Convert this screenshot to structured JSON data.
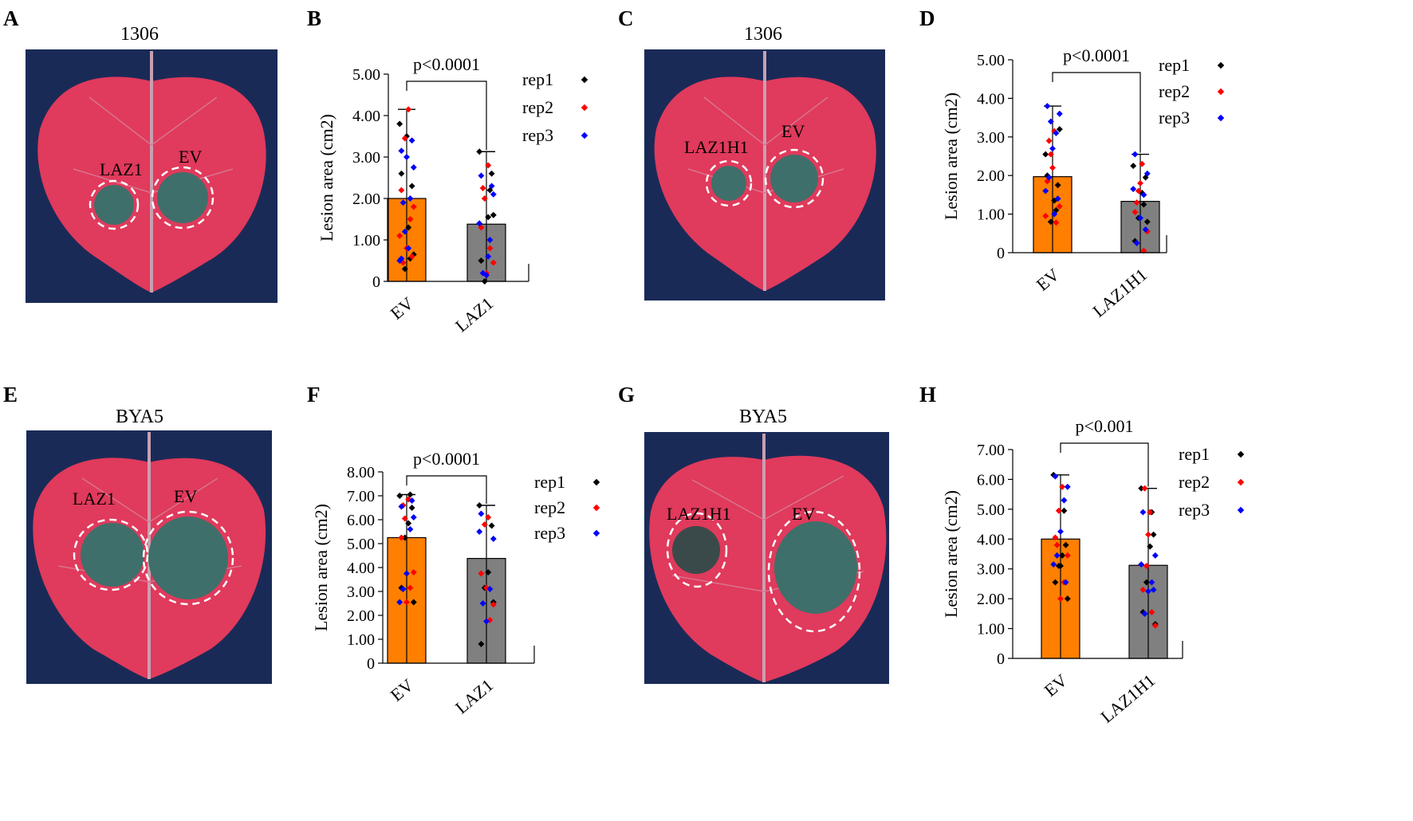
{
  "colors": {
    "ev_bar": "#FF7F00",
    "laz_bar": "#808080",
    "rep1": "#000000",
    "rep2": "#FF0000",
    "rep3": "#0000FF",
    "leaf": "#e03a5c",
    "background_photo": "#1a2a57",
    "lesion": "#3f6f6a"
  },
  "panels": {
    "A": {
      "letter": "A",
      "title": "1306",
      "labels": [
        "LAZ1",
        "EV"
      ]
    },
    "B": {
      "letter": "B"
    },
    "C": {
      "letter": "C",
      "title": "1306",
      "labels": [
        "LAZ1H1",
        "EV"
      ]
    },
    "D": {
      "letter": "D"
    },
    "E": {
      "letter": "E",
      "title": "BYA5",
      "labels": [
        "LAZ1",
        "EV"
      ]
    },
    "F": {
      "letter": "F"
    },
    "G": {
      "letter": "G",
      "title": "BYA5",
      "labels": [
        "LAZ1H1",
        "EV"
      ]
    },
    "H": {
      "letter": "H"
    }
  },
  "chart_data": [
    {
      "panel": "B",
      "type": "bar",
      "categories": [
        "EV",
        "LAZ1"
      ],
      "values": [
        2.0,
        1.38
      ],
      "error_upper": [
        4.15,
        3.13
      ],
      "ylabel": "Lesion area (cm2)",
      "yticks": [
        "0",
        "1.00",
        "2.00",
        "3.00",
        "4.00",
        "5.00"
      ],
      "ylim": [
        0,
        5
      ],
      "pvalue": "p<0.0001",
      "legend": [
        "rep1",
        "rep2",
        "rep3"
      ],
      "points": {
        "EV": {
          "rep1": [
            3.8,
            2.3,
            1.3,
            0.3,
            2.6,
            0.65,
            0.55,
            3.5
          ],
          "rep2": [
            4.15,
            3.45,
            2.2,
            1.8,
            1.5,
            0.8,
            0.45,
            1.1,
            0.6
          ],
          "rep3": [
            3.15,
            2.75,
            2.0,
            3.0,
            1.9,
            0.5,
            3.4,
            0.8,
            1.2,
            0.55
          ]
        },
        "LAZ1": {
          "rep1": [
            3.13,
            2.6,
            1.55,
            0.0,
            0.5,
            1.6,
            2.2
          ],
          "rep2": [
            2.8,
            2.0,
            1.3,
            0.45,
            0.8,
            0.2,
            2.25
          ],
          "rep3": [
            2.55,
            2.1,
            1.0,
            0.15,
            0.2,
            1.4,
            2.3,
            0.6
          ]
        }
      }
    },
    {
      "panel": "D",
      "type": "bar",
      "categories": [
        "EV",
        "LAZ1H1"
      ],
      "values": [
        1.97,
        1.33
      ],
      "error_upper": [
        3.8,
        2.55
      ],
      "ylabel": "Lesion area (cm2)",
      "yticks": [
        "0",
        "1.00",
        "2.00",
        "3.00",
        "4.00",
        "5.00"
      ],
      "ylim": [
        0,
        5
      ],
      "pvalue": "p<0.0001",
      "legend": [
        "rep1",
        "rep2",
        "rep3"
      ],
      "points": {
        "EV": {
          "rep1": [
            2.55,
            1.75,
            1.35,
            0.8,
            2.0,
            3.2,
            1.1
          ],
          "rep2": [
            3.15,
            2.55,
            1.85,
            1.2,
            0.78,
            2.2,
            2.9,
            0.95
          ],
          "rep3": [
            3.8,
            3.6,
            3.1,
            2.7,
            1.95,
            1.6,
            1.4,
            1.0,
            3.4
          ]
        },
        "LAZ1H1": {
          "rep1": [
            2.25,
            1.95,
            1.55,
            0.9,
            0.3,
            0.8,
            1.25
          ],
          "rep2": [
            2.3,
            1.6,
            1.05,
            0.55,
            0.05,
            1.8,
            1.3
          ],
          "rep3": [
            2.55,
            2.05,
            1.5,
            0.9,
            0.25,
            1.65,
            0.6
          ]
        }
      }
    },
    {
      "panel": "F",
      "type": "bar",
      "categories": [
        "EV",
        "LAZ1"
      ],
      "values": [
        5.25,
        4.38
      ],
      "error_upper": [
        7.05,
        6.6
      ],
      "ylabel": "Lesion area (cm2)",
      "yticks": [
        "0",
        "1.00",
        "2.00",
        "3.00",
        "4.00",
        "5.00",
        "6.00",
        "7.00",
        "8.00"
      ],
      "ylim": [
        0,
        8
      ],
      "pvalue": "p<0.0001",
      "legend": [
        "rep1",
        "rep2",
        "rep3"
      ],
      "points": {
        "EV": {
          "rep1": [
            7.0,
            6.5,
            5.85,
            5.25,
            3.15,
            2.55,
            7.05
          ],
          "rep2": [
            6.85,
            6.05,
            5.25,
            3.8,
            3.15,
            2.55,
            6.6
          ],
          "rep3": [
            6.55,
            6.1,
            5.6,
            3.75,
            3.1,
            2.55,
            6.8
          ]
        },
        "LAZ1": {
          "rep1": [
            6.6,
            5.75,
            3.8,
            3.15,
            0.8,
            2.55
          ],
          "rep2": [
            6.1,
            5.8,
            3.75,
            2.45,
            1.8,
            3.15
          ],
          "rep3": [
            6.25,
            5.2,
            3.1,
            1.75,
            2.5,
            5.5
          ]
        }
      }
    },
    {
      "panel": "H",
      "type": "bar",
      "categories": [
        "EV",
        "LAZ1H1"
      ],
      "values": [
        4.0,
        3.12
      ],
      "error_upper": [
        6.15,
        5.7
      ],
      "ylabel": "Lesion area (cm2)",
      "yticks": [
        "0",
        "1.00",
        "2.00",
        "3.00",
        "4.00",
        "5.00",
        "6.00",
        "7.00"
      ],
      "ylim": [
        0,
        7
      ],
      "pvalue": "p<0.001",
      "legend": [
        "rep1",
        "rep2",
        "rep3"
      ],
      "points": {
        "EV": {
          "rep1": [
            6.15,
            3.8,
            3.45,
            3.1,
            2.55,
            2.0,
            4.95,
            3.1
          ],
          "rep2": [
            5.75,
            4.95,
            4.05,
            3.45,
            2.55,
            2.0,
            3.8
          ],
          "rep3": [
            6.1,
            5.75,
            5.3,
            4.25,
            3.45,
            3.15,
            2.55
          ]
        },
        "LAZ1H1": {
          "rep1": [
            5.7,
            4.15,
            3.75,
            2.55,
            1.55,
            1.15,
            4.9
          ],
          "rep2": [
            4.9,
            3.1,
            2.3,
            1.1,
            1.55,
            4.15,
            5.7
          ],
          "rep3": [
            4.9,
            3.45,
            2.55,
            2.25,
            1.5,
            3.15,
            2.3
          ]
        }
      }
    }
  ]
}
